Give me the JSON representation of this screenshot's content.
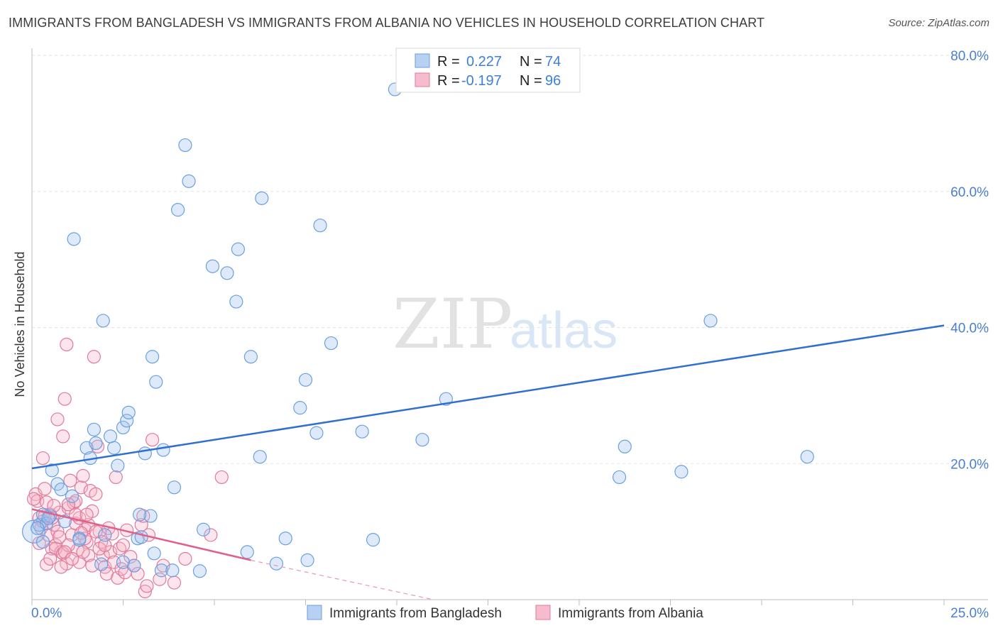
{
  "title": "IMMIGRANTS FROM BANGLADESH VS IMMIGRANTS FROM ALBANIA NO VEHICLES IN HOUSEHOLD CORRELATION CHART",
  "source": "Source: ZipAtlas.com",
  "watermark": {
    "zip": "ZIP",
    "atlas": "atlas"
  },
  "legend": {
    "r_label": "R =",
    "n_label": "N =",
    "series": [
      {
        "name": "Immigrants from Bangladesh",
        "r": "0.227",
        "n": "74",
        "color": "#6a9fe0",
        "fill": "#b8d0f2"
      },
      {
        "name": "Immigrants from Albania",
        "r": "-0.197",
        "n": "96",
        "color": "#e07a9a",
        "fill": "#f6bccd"
      }
    ]
  },
  "chart_data": {
    "type": "scatter",
    "title": "IMMIGRANTS FROM BANGLADESH VS IMMIGRANTS FROM ALBANIA NO VEHICLES IN HOUSEHOLD CORRELATION CHART",
    "xlabel": "",
    "ylabel": "No Vehicles in Household",
    "xlim": [
      0,
      25
    ],
    "ylim": [
      0,
      80
    ],
    "x_tick_labels": [
      "0.0%",
      "25.0%"
    ],
    "y_ticks": [
      20,
      40,
      60,
      80
    ],
    "y_tick_labels": [
      "20.0%",
      "40.0%",
      "60.0%",
      "80.0%"
    ],
    "series": [
      {
        "name": "Immigrants from Bangladesh",
        "color": "#3a78d4",
        "trend": {
          "x": [
            0,
            25
          ],
          "y": [
            19.3,
            40.3
          ]
        },
        "points": [
          [
            0.05,
            10.0,
            "big"
          ],
          [
            0.2,
            11.0
          ],
          [
            0.3,
            12.5
          ],
          [
            0.3,
            8.5
          ],
          [
            0.4,
            11.2
          ],
          [
            0.5,
            12.3
          ],
          [
            0.55,
            19.0
          ],
          [
            0.7,
            17.0
          ],
          [
            0.8,
            16.2
          ],
          [
            0.9,
            11.5
          ],
          [
            1.1,
            15.2
          ],
          [
            1.15,
            53.0
          ],
          [
            1.3,
            9.0
          ],
          [
            1.5,
            22.3
          ],
          [
            1.6,
            20.8
          ],
          [
            1.7,
            25.0
          ],
          [
            1.75,
            23.0
          ],
          [
            1.95,
            41.0
          ],
          [
            2.15,
            24.0
          ],
          [
            2.25,
            22.3
          ],
          [
            2.35,
            19.7
          ],
          [
            2.5,
            25.3
          ],
          [
            2.6,
            26.3
          ],
          [
            2.65,
            27.5
          ],
          [
            2.9,
            9.0
          ],
          [
            3.1,
            21.5
          ],
          [
            3.3,
            35.7
          ],
          [
            3.4,
            32.0
          ],
          [
            3.6,
            22.0
          ],
          [
            3.25,
            12.3
          ],
          [
            3.35,
            6.8
          ],
          [
            3.55,
            4.3
          ],
          [
            3.85,
            4.3
          ],
          [
            3.9,
            16.5
          ],
          [
            4.0,
            57.3
          ],
          [
            4.2,
            66.8
          ],
          [
            4.3,
            61.5
          ],
          [
            4.6,
            4.2
          ],
          [
            4.7,
            10.3
          ],
          [
            4.95,
            49.0
          ],
          [
            5.35,
            48.0
          ],
          [
            5.6,
            43.8
          ],
          [
            5.65,
            51.5
          ],
          [
            5.9,
            7.0
          ],
          [
            6.0,
            35.7
          ],
          [
            6.25,
            21.0
          ],
          [
            6.3,
            59.0
          ],
          [
            6.7,
            5.3
          ],
          [
            6.95,
            9.0
          ],
          [
            7.35,
            28.2
          ],
          [
            7.5,
            32.3
          ],
          [
            7.55,
            5.8
          ],
          [
            7.8,
            24.5
          ],
          [
            7.9,
            55.0
          ],
          [
            8.2,
            37.7
          ],
          [
            9.05,
            24.7
          ],
          [
            9.35,
            8.8
          ],
          [
            9.95,
            75.0
          ],
          [
            10.7,
            23.5
          ],
          [
            11.35,
            29.5
          ],
          [
            16.1,
            18.0
          ],
          [
            16.25,
            22.5
          ],
          [
            17.8,
            18.8
          ],
          [
            18.6,
            41.0
          ],
          [
            21.25,
            21.0
          ],
          [
            1.9,
            5.2
          ],
          [
            2.0,
            9.5
          ],
          [
            2.5,
            5.5
          ],
          [
            2.8,
            5.0
          ],
          [
            1.3,
            8.8
          ],
          [
            0.15,
            10.5
          ],
          [
            0.45,
            12.0
          ],
          [
            3.0,
            9.2
          ],
          [
            2.95,
            12.5
          ]
        ]
      },
      {
        "name": "Immigrants from Albania",
        "color": "#e0608a",
        "trend": {
          "x": [
            0,
            6.0
          ],
          "y": [
            13.3,
            5.8
          ]
        },
        "trend_dashed": {
          "x": [
            6.0,
            11.0
          ],
          "y": [
            5.8,
            0.0
          ]
        },
        "points": [
          [
            0.1,
            15.5
          ],
          [
            0.15,
            14.5
          ],
          [
            0.2,
            12.0
          ],
          [
            0.25,
            10.5
          ],
          [
            0.3,
            20.8
          ],
          [
            0.35,
            16.3
          ],
          [
            0.4,
            14.3
          ],
          [
            0.45,
            9.5
          ],
          [
            0.5,
            12.5
          ],
          [
            0.55,
            7.5
          ],
          [
            0.6,
            11.0
          ],
          [
            0.65,
            8.0
          ],
          [
            0.7,
            26.5
          ],
          [
            0.75,
            12.8
          ],
          [
            0.8,
            7.0
          ],
          [
            0.85,
            24.0
          ],
          [
            0.9,
            29.5
          ],
          [
            0.95,
            37.5
          ],
          [
            1.0,
            13.5
          ],
          [
            1.05,
            17.5
          ],
          [
            1.1,
            9.5
          ],
          [
            1.15,
            14.2
          ],
          [
            1.2,
            11.2
          ],
          [
            1.25,
            7.3
          ],
          [
            1.3,
            5.5
          ],
          [
            1.35,
            16.5
          ],
          [
            1.4,
            18.2
          ],
          [
            1.45,
            10.3
          ],
          [
            1.5,
            8.5
          ],
          [
            1.55,
            6.5
          ],
          [
            1.6,
            16.0
          ],
          [
            1.65,
            13.0
          ],
          [
            1.7,
            35.7
          ],
          [
            1.75,
            15.5
          ],
          [
            1.8,
            22.5
          ],
          [
            1.85,
            10.0
          ],
          [
            1.9,
            8.5
          ],
          [
            1.95,
            6.5
          ],
          [
            2.0,
            4.8
          ],
          [
            2.05,
            3.8
          ],
          [
            2.1,
            10.5
          ],
          [
            2.15,
            7.0
          ],
          [
            2.2,
            9.7
          ],
          [
            2.25,
            5.5
          ],
          [
            2.3,
            18.0
          ],
          [
            2.35,
            3.2
          ],
          [
            2.4,
            7.5
          ],
          [
            2.45,
            4.5
          ],
          [
            2.5,
            8.0
          ],
          [
            2.55,
            4.0
          ],
          [
            2.6,
            10.2
          ],
          [
            2.7,
            6.3
          ],
          [
            2.8,
            5.0
          ],
          [
            2.9,
            3.8
          ],
          [
            3.0,
            11.0
          ],
          [
            3.05,
            12.3
          ],
          [
            3.1,
            1.2
          ],
          [
            3.15,
            2.0
          ],
          [
            3.2,
            9.5
          ],
          [
            3.3,
            23.5
          ],
          [
            3.5,
            3.0
          ],
          [
            3.6,
            5.0
          ],
          [
            3.9,
            2.5
          ],
          [
            4.2,
            6.0
          ],
          [
            4.9,
            9.5
          ],
          [
            5.2,
            18.0
          ],
          [
            0.05,
            14.8
          ],
          [
            0.2,
            8.3
          ],
          [
            0.4,
            5.2
          ],
          [
            0.55,
            12.0
          ],
          [
            0.65,
            7.5
          ],
          [
            0.7,
            10.0
          ],
          [
            0.85,
            6.8
          ],
          [
            0.95,
            5.3
          ],
          [
            1.0,
            8.0
          ],
          [
            1.2,
            14.5
          ],
          [
            1.3,
            12.0
          ],
          [
            1.4,
            7.0
          ],
          [
            1.45,
            9.0
          ],
          [
            1.55,
            11.0
          ],
          [
            1.65,
            5.0
          ],
          [
            1.75,
            10.0
          ],
          [
            1.85,
            7.5
          ],
          [
            0.3,
            11.5
          ],
          [
            0.5,
            6.0
          ],
          [
            0.75,
            9.2
          ],
          [
            1.0,
            14.0
          ],
          [
            1.2,
            12.5
          ],
          [
            1.35,
            9.8
          ],
          [
            1.5,
            12.5
          ],
          [
            0.35,
            12.3
          ],
          [
            0.6,
            13.8
          ],
          [
            0.9,
            7.0
          ],
          [
            1.1,
            6.0
          ],
          [
            2.0,
            8.0
          ],
          [
            0.8,
            4.8
          ]
        ]
      }
    ]
  }
}
